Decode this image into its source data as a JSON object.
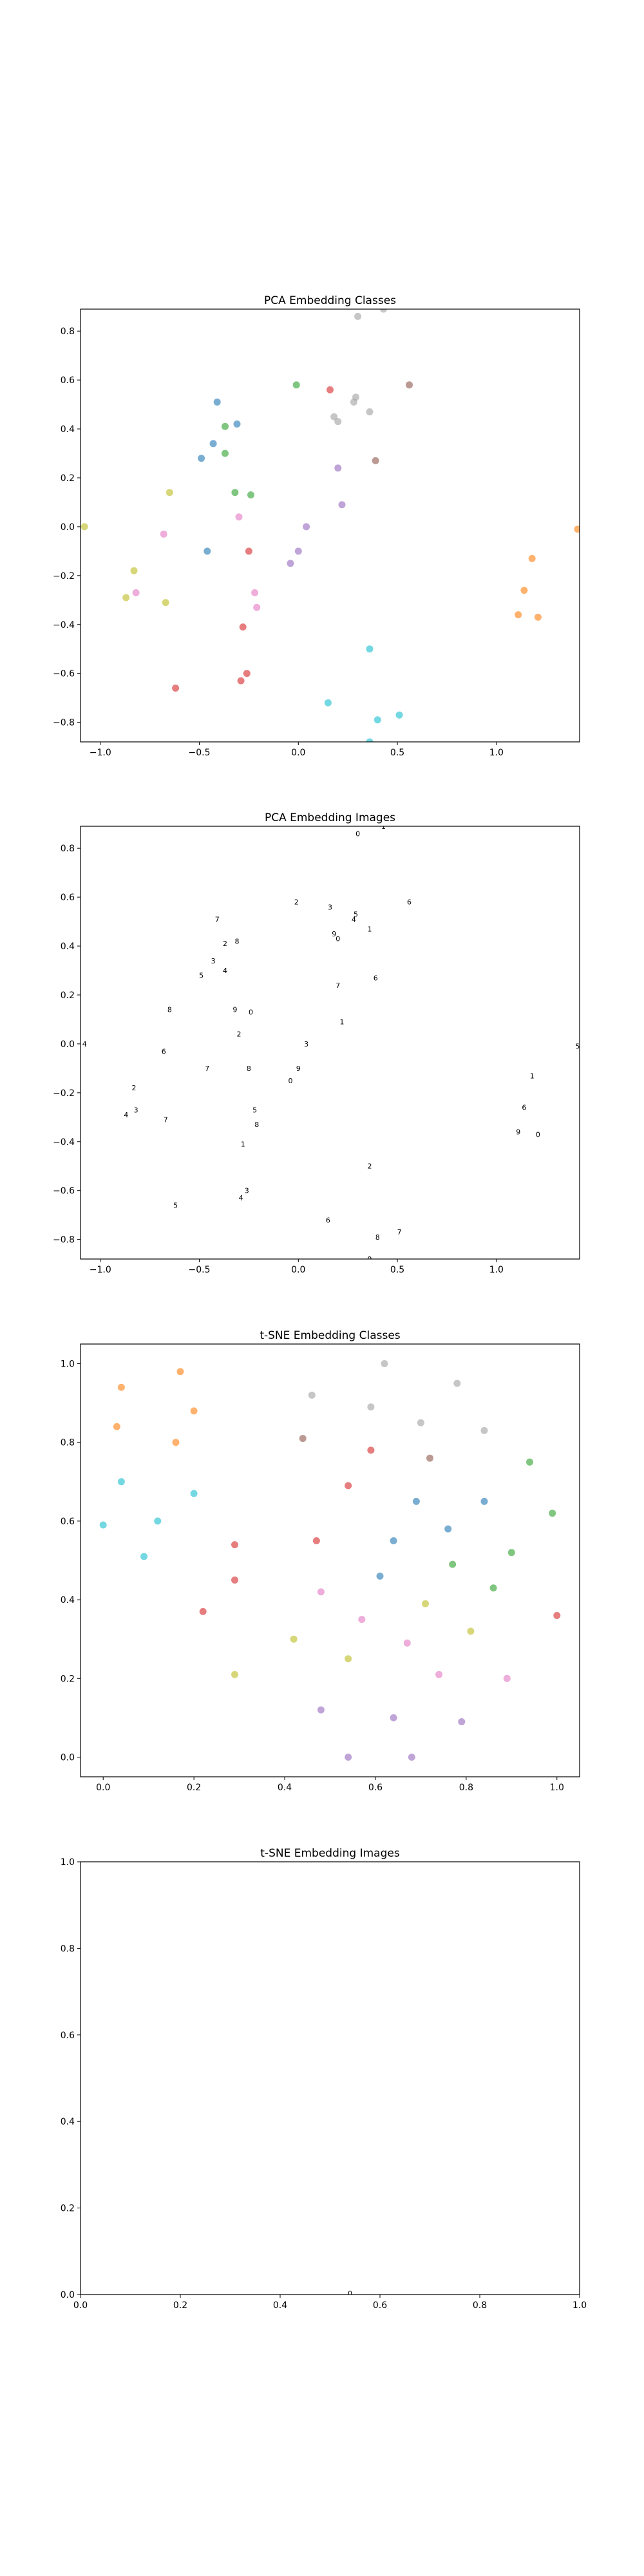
{
  "chart_data": [
    {
      "type": "scatter",
      "title": "PCA Embedding Classes",
      "xlabel": "",
      "ylabel": "",
      "xlim": [
        -1.1,
        1.42
      ],
      "ylim": [
        -0.88,
        0.89
      ],
      "xticks": [
        -1.0,
        -0.5,
        0.0,
        0.5,
        1.0
      ],
      "xtick_labels": [
        "−1.0",
        "−0.5",
        "0.0",
        "0.5",
        "1.0"
      ],
      "yticks": [
        -0.8,
        -0.6,
        -0.4,
        -0.2,
        0.0,
        0.2,
        0.4,
        0.6,
        0.8
      ],
      "ytick_labels": [
        "−0.8",
        "−0.6",
        "−0.4",
        "−0.2",
        "0.0",
        "0.2",
        "0.4",
        "0.6",
        "0.8"
      ],
      "grid": false,
      "points": [
        {
          "x": 0.3,
          "y": 0.86,
          "color": "#a0a0a0"
        },
        {
          "x": 0.43,
          "y": 0.89,
          "color": "#a0a0a0"
        },
        {
          "x": -0.01,
          "y": 0.58,
          "color": "#2ca02c"
        },
        {
          "x": 0.16,
          "y": 0.56,
          "color": "#d62728"
        },
        {
          "x": 0.28,
          "y": 0.51,
          "color": "#a0a0a0"
        },
        {
          "x": 0.29,
          "y": 0.53,
          "color": "#a0a0a0"
        },
        {
          "x": 0.56,
          "y": 0.58,
          "color": "#8c564b"
        },
        {
          "x": -0.41,
          "y": 0.51,
          "color": "#1f77b4"
        },
        {
          "x": -0.31,
          "y": 0.42,
          "color": "#1f77b4"
        },
        {
          "x": 0.18,
          "y": 0.45,
          "color": "#a0a0a0"
        },
        {
          "x": 0.2,
          "y": 0.43,
          "color": "#a0a0a0"
        },
        {
          "x": 0.36,
          "y": 0.47,
          "color": "#a0a0a0"
        },
        {
          "x": -0.37,
          "y": 0.41,
          "color": "#2ca02c"
        },
        {
          "x": -0.43,
          "y": 0.34,
          "color": "#1f77b4"
        },
        {
          "x": -0.37,
          "y": 0.3,
          "color": "#2ca02c"
        },
        {
          "x": -0.49,
          "y": 0.28,
          "color": "#1f77b4"
        },
        {
          "x": 0.39,
          "y": 0.27,
          "color": "#8c564b"
        },
        {
          "x": 0.2,
          "y": 0.24,
          "color": "#9467bd"
        },
        {
          "x": -0.65,
          "y": 0.14,
          "color": "#bcbd22"
        },
        {
          "x": -0.32,
          "y": 0.14,
          "color": "#2ca02c"
        },
        {
          "x": -0.24,
          "y": 0.13,
          "color": "#2ca02c"
        },
        {
          "x": 0.22,
          "y": 0.09,
          "color": "#9467bd"
        },
        {
          "x": -0.3,
          "y": 0.04,
          "color": "#e377c2"
        },
        {
          "x": 0.04,
          "y": 0.0,
          "color": "#9467bd"
        },
        {
          "x": -1.08,
          "y": 0.0,
          "color": "#bcbd22"
        },
        {
          "x": 1.41,
          "y": -0.01,
          "color": "#ff7f0e"
        },
        {
          "x": -0.68,
          "y": -0.03,
          "color": "#e377c2"
        },
        {
          "x": -0.46,
          "y": -0.1,
          "color": "#1f77b4"
        },
        {
          "x": -0.25,
          "y": -0.1,
          "color": "#d62728"
        },
        {
          "x": 0.0,
          "y": -0.1,
          "color": "#9467bd"
        },
        {
          "x": -0.04,
          "y": -0.15,
          "color": "#9467bd"
        },
        {
          "x": 1.18,
          "y": -0.13,
          "color": "#ff7f0e"
        },
        {
          "x": -0.83,
          "y": -0.18,
          "color": "#bcbd22"
        },
        {
          "x": -0.82,
          "y": -0.27,
          "color": "#e377c2"
        },
        {
          "x": -0.87,
          "y": -0.29,
          "color": "#bcbd22"
        },
        {
          "x": -0.22,
          "y": -0.27,
          "color": "#e377c2"
        },
        {
          "x": 1.14,
          "y": -0.26,
          "color": "#ff7f0e"
        },
        {
          "x": -0.67,
          "y": -0.31,
          "color": "#bcbd22"
        },
        {
          "x": -0.21,
          "y": -0.33,
          "color": "#e377c2"
        },
        {
          "x": 1.11,
          "y": -0.36,
          "color": "#ff7f0e"
        },
        {
          "x": 1.21,
          "y": -0.37,
          "color": "#ff7f0e"
        },
        {
          "x": -0.28,
          "y": -0.41,
          "color": "#d62728"
        },
        {
          "x": 0.36,
          "y": -0.5,
          "color": "#17becf"
        },
        {
          "x": -0.26,
          "y": -0.6,
          "color": "#d62728"
        },
        {
          "x": -0.29,
          "y": -0.63,
          "color": "#d62728"
        },
        {
          "x": -0.62,
          "y": -0.66,
          "color": "#d62728"
        },
        {
          "x": 0.15,
          "y": -0.72,
          "color": "#17becf"
        },
        {
          "x": 0.51,
          "y": -0.77,
          "color": "#17becf"
        },
        {
          "x": 0.4,
          "y": -0.79,
          "color": "#17becf"
        },
        {
          "x": 0.36,
          "y": -0.88,
          "color": "#17becf"
        }
      ]
    },
    {
      "type": "scatter",
      "title": "PCA Embedding Images",
      "xlabel": "",
      "ylabel": "",
      "xlim": [
        -1.1,
        1.42
      ],
      "ylim": [
        -0.88,
        0.89
      ],
      "xticks": [
        -1.0,
        -0.5,
        0.0,
        0.5,
        1.0
      ],
      "xtick_labels": [
        "−1.0",
        "−0.5",
        "0.0",
        "0.5",
        "1.0"
      ],
      "yticks": [
        -0.8,
        -0.6,
        -0.4,
        -0.2,
        0.0,
        0.2,
        0.4,
        0.6,
        0.8
      ],
      "ytick_labels": [
        "−0.8",
        "−0.6",
        "−0.4",
        "−0.2",
        "0.0",
        "0.2",
        "0.4",
        "0.6",
        "0.8"
      ],
      "grid": false,
      "markers": "tiny digit images at the same positions as PCA Embedding Classes"
    },
    {
      "type": "scatter",
      "title": "t-SNE Embedding Classes",
      "xlabel": "",
      "ylabel": "",
      "xlim": [
        -0.05,
        1.05
      ],
      "ylim": [
        -0.05,
        1.05
      ],
      "xticks": [
        0.0,
        0.2,
        0.4,
        0.6,
        0.8,
        1.0
      ],
      "xtick_labels": [
        "0.0",
        "0.2",
        "0.4",
        "0.6",
        "0.8",
        "1.0"
      ],
      "yticks": [
        0.0,
        0.2,
        0.4,
        0.6,
        0.8,
        1.0
      ],
      "ytick_labels": [
        "0.0",
        "0.2",
        "0.4",
        "0.6",
        "0.8",
        "1.0"
      ],
      "grid": false,
      "points": [
        {
          "x": 0.62,
          "y": 1.0,
          "color": "#a0a0a0"
        },
        {
          "x": 0.17,
          "y": 0.98,
          "color": "#ff7f0e"
        },
        {
          "x": 0.78,
          "y": 0.95,
          "color": "#a0a0a0"
        },
        {
          "x": 0.04,
          "y": 0.94,
          "color": "#ff7f0e"
        },
        {
          "x": 0.46,
          "y": 0.92,
          "color": "#a0a0a0"
        },
        {
          "x": 0.2,
          "y": 0.88,
          "color": "#ff7f0e"
        },
        {
          "x": 0.59,
          "y": 0.89,
          "color": "#a0a0a0"
        },
        {
          "x": 0.03,
          "y": 0.84,
          "color": "#ff7f0e"
        },
        {
          "x": 0.7,
          "y": 0.85,
          "color": "#a0a0a0"
        },
        {
          "x": 0.84,
          "y": 0.83,
          "color": "#a0a0a0"
        },
        {
          "x": 0.44,
          "y": 0.81,
          "color": "#8c564b"
        },
        {
          "x": 0.16,
          "y": 0.8,
          "color": "#ff7f0e"
        },
        {
          "x": 0.59,
          "y": 0.78,
          "color": "#d62728"
        },
        {
          "x": 0.72,
          "y": 0.76,
          "color": "#8c564b"
        },
        {
          "x": 0.94,
          "y": 0.75,
          "color": "#2ca02c"
        },
        {
          "x": 0.04,
          "y": 0.7,
          "color": "#17becf"
        },
        {
          "x": 0.54,
          "y": 0.69,
          "color": "#d62728"
        },
        {
          "x": 0.2,
          "y": 0.67,
          "color": "#17becf"
        },
        {
          "x": 0.69,
          "y": 0.65,
          "color": "#1f77b4"
        },
        {
          "x": 0.84,
          "y": 0.65,
          "color": "#1f77b4"
        },
        {
          "x": 0.99,
          "y": 0.62,
          "color": "#2ca02c"
        },
        {
          "x": 0.12,
          "y": 0.6,
          "color": "#17becf"
        },
        {
          "x": 0.0,
          "y": 0.59,
          "color": "#17becf"
        },
        {
          "x": 0.76,
          "y": 0.58,
          "color": "#1f77b4"
        },
        {
          "x": 0.64,
          "y": 0.55,
          "color": "#1f77b4"
        },
        {
          "x": 0.47,
          "y": 0.55,
          "color": "#d62728"
        },
        {
          "x": 0.29,
          "y": 0.54,
          "color": "#d62728"
        },
        {
          "x": 0.9,
          "y": 0.52,
          "color": "#2ca02c"
        },
        {
          "x": 0.09,
          "y": 0.51,
          "color": "#17becf"
        },
        {
          "x": 0.77,
          "y": 0.49,
          "color": "#2ca02c"
        },
        {
          "x": 0.61,
          "y": 0.46,
          "color": "#1f77b4"
        },
        {
          "x": 0.29,
          "y": 0.45,
          "color": "#d62728"
        },
        {
          "x": 0.86,
          "y": 0.43,
          "color": "#2ca02c"
        },
        {
          "x": 0.48,
          "y": 0.42,
          "color": "#e377c2"
        },
        {
          "x": 0.71,
          "y": 0.39,
          "color": "#bcbd22"
        },
        {
          "x": 0.22,
          "y": 0.37,
          "color": "#d62728"
        },
        {
          "x": 1.0,
          "y": 0.36,
          "color": "#d62728"
        },
        {
          "x": 0.57,
          "y": 0.35,
          "color": "#e377c2"
        },
        {
          "x": 0.81,
          "y": 0.32,
          "color": "#bcbd22"
        },
        {
          "x": 0.42,
          "y": 0.3,
          "color": "#bcbd22"
        },
        {
          "x": 0.67,
          "y": 0.29,
          "color": "#e377c2"
        },
        {
          "x": 0.54,
          "y": 0.25,
          "color": "#bcbd22"
        },
        {
          "x": 0.29,
          "y": 0.21,
          "color": "#bcbd22"
        },
        {
          "x": 0.74,
          "y": 0.21,
          "color": "#e377c2"
        },
        {
          "x": 0.89,
          "y": 0.2,
          "color": "#e377c2"
        },
        {
          "x": 0.48,
          "y": 0.12,
          "color": "#9467bd"
        },
        {
          "x": 0.64,
          "y": 0.1,
          "color": "#9467bd"
        },
        {
          "x": 0.79,
          "y": 0.09,
          "color": "#9467bd"
        },
        {
          "x": 0.54,
          "y": 0.0,
          "color": "#9467bd"
        },
        {
          "x": 0.68,
          "y": 0.0,
          "color": "#9467bd"
        }
      ]
    },
    {
      "type": "scatter",
      "title": "t-SNE Embedding Images",
      "xlabel": "",
      "ylabel": "",
      "xlim": [
        0.0,
        1.0
      ],
      "ylim": [
        0.0,
        1.0
      ],
      "xticks": [
        0.0,
        0.2,
        0.4,
        0.6,
        0.8,
        1.0
      ],
      "xtick_labels": [
        "0.0",
        "0.2",
        "0.4",
        "0.6",
        "0.8",
        "1.0"
      ],
      "yticks": [
        0.0,
        0.2,
        0.4,
        0.6,
        0.8,
        1.0
      ],
      "ytick_labels": [
        "0.0",
        "0.2",
        "0.4",
        "0.6",
        "0.8",
        "1.0"
      ],
      "grid": false,
      "markers": "one tiny digit image near x=0.54 at the bottom edge"
    }
  ]
}
